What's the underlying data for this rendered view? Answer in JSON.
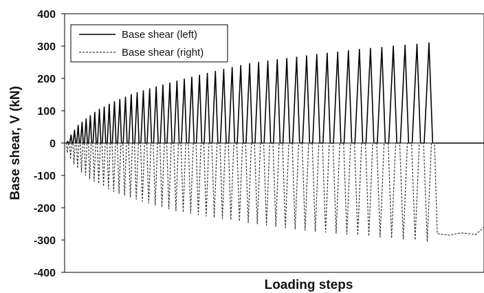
{
  "chart_data": {
    "type": "line",
    "title": "",
    "xlabel": "Loading steps",
    "ylabel": "Base shear, V (kN)",
    "ylim": [
      -400,
      400
    ],
    "y_ticks": [
      "400",
      "300",
      "200",
      "100",
      "0",
      "-100",
      "-200",
      "-300",
      "-400"
    ],
    "x_tick_labels": "none",
    "grid": false,
    "legend_position": "top-left",
    "cycles": 48,
    "series": [
      {
        "name": "Base shear (left)",
        "style": "solid",
        "color": "#000000",
        "description": "positive cyclic peaks growing with each cycle, then drops to ~0 after failure",
        "cycle_peaks": [
          5,
          25,
          40,
          55,
          65,
          75,
          85,
          95,
          105,
          112,
          120,
          128,
          135,
          142,
          150,
          156,
          162,
          168,
          174,
          180,
          186,
          192,
          198,
          204,
          210,
          216,
          222,
          228,
          234,
          240,
          246,
          250,
          254,
          258,
          262,
          266,
          270,
          274,
          278,
          282,
          286,
          290,
          293,
          296,
          300,
          303,
          306,
          310
        ],
        "post_failure_value": 0
      },
      {
        "name": "Base shear (right)",
        "style": "dashed",
        "color": "#333333",
        "description": "negative cyclic troughs growing with each cycle, then residual plateau ~-280 after failure",
        "cycle_troughs": [
          -30,
          -50,
          -65,
          -78,
          -90,
          -100,
          -110,
          -118,
          -126,
          -134,
          -142,
          -150,
          -156,
          -162,
          -168,
          -174,
          -180,
          -186,
          -192,
          -198,
          -204,
          -210,
          -214,
          -218,
          -222,
          -226,
          -230,
          -234,
          -238,
          -242,
          -246,
          -250,
          -254,
          -258,
          -262,
          -266,
          -270,
          -273,
          -276,
          -279,
          -282,
          -285,
          -288,
          -291,
          -294,
          -297,
          -300,
          -305
        ],
        "post_failure_value": -280,
        "final_value": -260
      }
    ]
  }
}
